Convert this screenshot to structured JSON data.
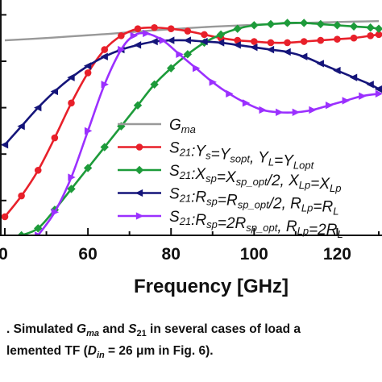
{
  "chart_data": {
    "type": "line",
    "xlabel": "Frequency [GHz]",
    "xlim": [
      40,
      130
    ],
    "ylim": [
      0,
      1.0
    ],
    "x_ticks": [
      "60",
      "80",
      "100",
      "120"
    ],
    "grid": false,
    "legend_position": "center-right",
    "series": [
      {
        "name": "Gma",
        "legend_parts": [
          [
            "G",
            "ma"
          ]
        ],
        "color": "#999999",
        "marker": "none",
        "x": [
          40,
          45,
          50,
          55,
          60,
          65,
          70,
          75,
          80,
          85,
          90,
          95,
          100,
          105,
          110,
          115,
          120,
          125,
          130
        ],
        "y": [
          0.84,
          0.845,
          0.85,
          0.856,
          0.862,
          0.868,
          0.875,
          0.882,
          0.888,
          0.894,
          0.899,
          0.903,
          0.907,
          0.911,
          0.914,
          0.917,
          0.919,
          0.921,
          0.923
        ]
      },
      {
        "name": "S21:Ys=Ysopt, YL=YLopt",
        "legend_parts": [
          [
            "S",
            "21"
          ],
          [
            ":Y",
            "s"
          ],
          [
            "=Y",
            "sopt"
          ],
          [
            ", Y",
            "L"
          ],
          [
            "=Y",
            "Lopt"
          ]
        ],
        "color": "#e8202a",
        "marker": "circle",
        "x": [
          40,
          44,
          48,
          52,
          56,
          60,
          64,
          68,
          72,
          76,
          80,
          84,
          88,
          92,
          96,
          100,
          104,
          108,
          112,
          116,
          120,
          124,
          128,
          130
        ],
        "y": [
          0.08,
          0.17,
          0.28,
          0.42,
          0.57,
          0.7,
          0.8,
          0.86,
          0.89,
          0.895,
          0.89,
          0.88,
          0.865,
          0.85,
          0.84,
          0.835,
          0.83,
          0.83,
          0.835,
          0.84,
          0.845,
          0.85,
          0.86,
          0.865
        ]
      },
      {
        "name": "S21:Xsp=Xsp_opt/2, XLp=XLp",
        "legend_parts": [
          [
            "S",
            "21"
          ],
          [
            ":X",
            "sp"
          ],
          [
            "=X",
            "sp_opt"
          ],
          [
            "/2, X",
            "Lp"
          ],
          [
            "=X",
            "Lp"
          ]
        ],
        "color": "#1d9b3a",
        "marker": "diamond",
        "x": [
          44,
          48,
          52,
          56,
          60,
          64,
          68,
          72,
          76,
          80,
          84,
          88,
          92,
          96,
          100,
          104,
          108,
          112,
          116,
          120,
          124,
          128,
          130
        ],
        "y": [
          0.0,
          0.03,
          0.11,
          0.2,
          0.29,
          0.38,
          0.47,
          0.56,
          0.65,
          0.72,
          0.78,
          0.83,
          0.865,
          0.89,
          0.905,
          0.91,
          0.915,
          0.915,
          0.91,
          0.905,
          0.9,
          0.895,
          0.89
        ]
      },
      {
        "name": "S21:Rsp=Rsp_opt/2, RLp=RL",
        "legend_parts": [
          [
            "S",
            "21"
          ],
          [
            ":R",
            "sp"
          ],
          [
            "=R",
            "sp_opt"
          ],
          [
            "/2, R",
            "Lp"
          ],
          [
            "=R",
            "L"
          ]
        ],
        "color": "#15157a",
        "marker": "triangle-left",
        "x": [
          40,
          44,
          48,
          52,
          56,
          60,
          64,
          68,
          72,
          76,
          80,
          84,
          88,
          92,
          96,
          100,
          104,
          108,
          112,
          116,
          120,
          124,
          128,
          130
        ],
        "y": [
          0.39,
          0.47,
          0.55,
          0.62,
          0.68,
          0.73,
          0.77,
          0.8,
          0.82,
          0.835,
          0.84,
          0.84,
          0.835,
          0.83,
          0.82,
          0.81,
          0.8,
          0.79,
          0.77,
          0.74,
          0.71,
          0.68,
          0.65,
          0.63
        ]
      },
      {
        "name": "S21:Rsp=2Rsp_opt, RLp=2RL",
        "legend_parts": [
          [
            "S",
            "21"
          ],
          [
            ":R",
            "sp"
          ],
          [
            "=2R",
            "sp_opt"
          ],
          [
            ", R",
            "Lp"
          ],
          [
            "=2R",
            "L"
          ]
        ],
        "color": "#9b30ff",
        "marker": "triangle-right",
        "x": [
          48,
          52,
          56,
          60,
          64,
          68,
          71,
          74,
          78,
          82,
          86,
          90,
          94,
          98,
          102,
          106,
          110,
          114,
          118,
          122,
          126,
          130
        ],
        "y": [
          0.0,
          0.1,
          0.25,
          0.45,
          0.65,
          0.8,
          0.86,
          0.87,
          0.84,
          0.78,
          0.72,
          0.66,
          0.61,
          0.57,
          0.54,
          0.53,
          0.53,
          0.54,
          0.56,
          0.58,
          0.6,
          0.61
        ]
      }
    ]
  },
  "caption": {
    "line1_parts": [
      {
        "t": ". Simulated "
      },
      {
        "t": "G",
        "i": true
      },
      {
        "t": "ma",
        "i": true,
        "sub": true
      },
      {
        "t": " and "
      },
      {
        "t": "S",
        "i": true
      },
      {
        "t": "21",
        "sub": true
      },
      {
        "t": " in several cases of load a"
      }
    ],
    "line2_parts": [
      {
        "t": "lemented TF ("
      },
      {
        "t": "D",
        "i": true
      },
      {
        "t": "in",
        "i": true,
        "sub": true
      },
      {
        "t": " = 26 μm in Fig. 6)."
      }
    ]
  }
}
